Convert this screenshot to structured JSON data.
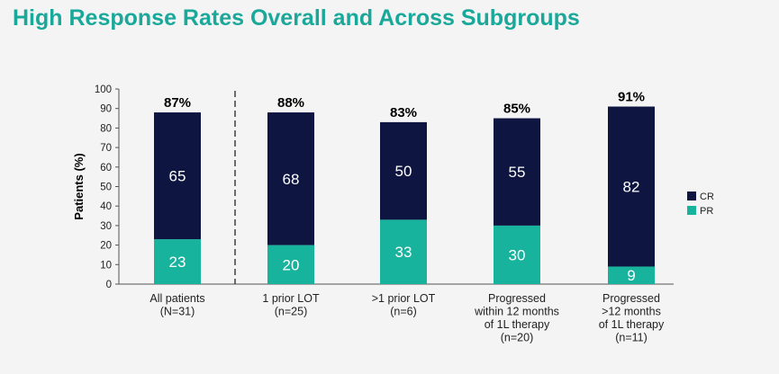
{
  "page": {
    "title": "High Response Rates Overall and Across Subgroups"
  },
  "colors": {
    "title": "#1aa89a",
    "cr": "#0d1540",
    "pr": "#18b39d"
  },
  "chart_data": {
    "type": "bar",
    "stacked": true,
    "title": "",
    "xlabel": "",
    "ylabel": "Patients (%)",
    "ylim": [
      0,
      100
    ],
    "yticks": [
      0,
      10,
      20,
      30,
      40,
      50,
      60,
      70,
      80,
      90,
      100
    ],
    "categories": [
      [
        "All patients",
        "(N=31)"
      ],
      [
        "1 prior LOT",
        "(n=25)"
      ],
      [
        ">1 prior LOT",
        "(n=6)"
      ],
      [
        "Progressed",
        "within 12 months",
        "of 1L therapy",
        "(n=20)"
      ],
      [
        "Progressed",
        ">12 months",
        "of 1L therapy",
        "(n=11)"
      ]
    ],
    "totals": [
      "87%",
      "88%",
      "83%",
      "85%",
      "91%"
    ],
    "series": [
      {
        "name": "PR",
        "values": [
          23,
          20,
          33,
          30,
          9
        ]
      },
      {
        "name": "CR",
        "values": [
          65,
          68,
          50,
          55,
          82
        ]
      }
    ],
    "legend_position": "right",
    "separator_after_category": 0
  }
}
